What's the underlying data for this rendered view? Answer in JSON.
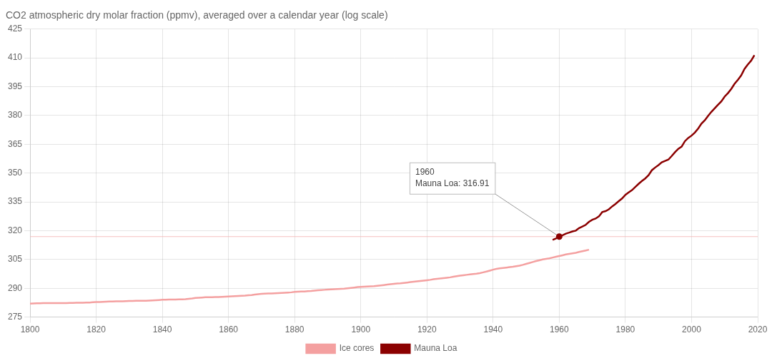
{
  "chart_data": {
    "type": "line",
    "title": "CO2 atmospheric dry molar fraction (ppmv), averaged over a calendar year (log scale)",
    "xlim": [
      1800,
      2020
    ],
    "xticks": [
      1800,
      1820,
      1840,
      1860,
      1880,
      1900,
      1920,
      1940,
      1960,
      1980,
      2000,
      2020
    ],
    "ylim": [
      275,
      425
    ],
    "yticks": [
      275,
      290,
      305,
      320,
      335,
      350,
      365,
      380,
      395,
      410,
      425
    ],
    "grid": true,
    "legend": "bottom",
    "series": [
      {
        "name": "Ice cores",
        "color": "#f4a0a0",
        "x": [
          1800,
          1801,
          1802,
          1803,
          1804,
          1805,
          1806,
          1807,
          1808,
          1809,
          1810,
          1811,
          1812,
          1813,
          1814,
          1815,
          1816,
          1817,
          1818,
          1819,
          1820,
          1821,
          1822,
          1823,
          1824,
          1825,
          1826,
          1827,
          1828,
          1829,
          1830,
          1831,
          1832,
          1833,
          1834,
          1835,
          1836,
          1837,
          1838,
          1839,
          1840,
          1841,
          1842,
          1843,
          1844,
          1845,
          1846,
          1847,
          1848,
          1849,
          1850,
          1851,
          1852,
          1853,
          1854,
          1855,
          1856,
          1857,
          1858,
          1859,
          1860,
          1861,
          1862,
          1863,
          1864,
          1865,
          1866,
          1867,
          1868,
          1869,
          1870,
          1871,
          1872,
          1873,
          1874,
          1875,
          1876,
          1877,
          1878,
          1879,
          1880,
          1881,
          1882,
          1883,
          1884,
          1885,
          1886,
          1887,
          1888,
          1889,
          1890,
          1891,
          1892,
          1893,
          1894,
          1895,
          1896,
          1897,
          1898,
          1899,
          1900,
          1901,
          1902,
          1903,
          1904,
          1905,
          1906,
          1907,
          1908,
          1909,
          1910,
          1911,
          1912,
          1913,
          1914,
          1915,
          1916,
          1917,
          1918,
          1919,
          1920,
          1921,
          1922,
          1923,
          1924,
          1925,
          1926,
          1927,
          1928,
          1929,
          1930,
          1931,
          1932,
          1933,
          1934,
          1935,
          1936,
          1937,
          1938,
          1939,
          1940,
          1941,
          1942,
          1943,
          1944,
          1945,
          1946,
          1947,
          1948,
          1949,
          1950,
          1951,
          1952,
          1953,
          1954,
          1955,
          1956,
          1957,
          1958,
          1959,
          1960,
          1961,
          1962,
          1963,
          1964,
          1965,
          1966,
          1967,
          1968,
          1969
        ],
        "values": [
          282.0,
          282.1,
          282.2,
          282.2,
          282.3,
          282.3,
          282.3,
          282.3,
          282.3,
          282.3,
          282.3,
          282.3,
          282.4,
          282.4,
          282.5,
          282.5,
          282.5,
          282.6,
          282.6,
          282.7,
          282.8,
          282.8,
          282.9,
          283.0,
          283.1,
          283.1,
          283.2,
          283.2,
          283.2,
          283.3,
          283.4,
          283.4,
          283.5,
          283.5,
          283.5,
          283.5,
          283.6,
          283.7,
          283.8,
          283.9,
          284.0,
          284.0,
          284.1,
          284.1,
          284.1,
          284.2,
          284.2,
          284.3,
          284.5,
          284.7,
          285.0,
          285.1,
          285.2,
          285.3,
          285.3,
          285.3,
          285.4,
          285.4,
          285.5,
          285.6,
          285.7,
          285.8,
          285.9,
          286.0,
          286.1,
          286.2,
          286.4,
          286.5,
          286.7,
          286.9,
          287.1,
          287.2,
          287.3,
          287.3,
          287.4,
          287.5,
          287.6,
          287.7,
          287.8,
          287.9,
          288.1,
          288.2,
          288.3,
          288.3,
          288.5,
          288.6,
          288.8,
          289.0,
          289.1,
          289.2,
          289.3,
          289.4,
          289.5,
          289.6,
          289.7,
          289.8,
          290.0,
          290.2,
          290.4,
          290.6,
          290.7,
          290.8,
          290.9,
          291.0,
          291.1,
          291.3,
          291.5,
          291.7,
          291.9,
          292.1,
          292.3,
          292.5,
          292.6,
          292.8,
          293.0,
          293.2,
          293.4,
          293.6,
          293.8,
          294.0,
          294.2,
          294.4,
          294.7,
          294.9,
          295.1,
          295.3,
          295.5,
          295.7,
          296.0,
          296.3,
          296.6,
          296.8,
          297.0,
          297.2,
          297.4,
          297.6,
          297.9,
          298.3,
          298.7,
          299.2,
          299.7,
          300.1,
          300.4,
          300.6,
          300.8,
          301.0,
          301.2,
          301.5,
          301.8,
          302.2,
          302.7,
          303.2,
          303.7,
          304.2,
          304.6,
          305.0,
          305.3,
          305.6,
          306.0,
          306.4,
          306.8,
          307.2,
          307.6,
          307.9,
          308.2,
          308.5,
          308.9,
          309.3,
          309.7,
          310.1
        ]
      },
      {
        "name": "Mauna Loa",
        "color": "#8b0000",
        "x": [
          1958,
          1959,
          1960,
          1961,
          1962,
          1963,
          1964,
          1965,
          1966,
          1967,
          1968,
          1969,
          1970,
          1971,
          1972,
          1973,
          1974,
          1975,
          1976,
          1977,
          1978,
          1979,
          1980,
          1981,
          1982,
          1983,
          1984,
          1985,
          1986,
          1987,
          1988,
          1989,
          1990,
          1991,
          1992,
          1993,
          1994,
          1995,
          1996,
          1997,
          1998,
          1999,
          2000,
          2001,
          2002,
          2003,
          2004,
          2005,
          2006,
          2007,
          2008,
          2009,
          2010,
          2011,
          2012,
          2013,
          2014,
          2015,
          2016,
          2017,
          2018,
          2019
        ],
        "values": [
          315.24,
          315.98,
          316.91,
          317.64,
          318.45,
          318.99,
          319.62,
          320.04,
          321.37,
          322.18,
          323.05,
          324.62,
          325.68,
          326.32,
          327.45,
          329.68,
          330.18,
          331.11,
          332.65,
          333.9,
          335.4,
          336.78,
          338.68,
          339.93,
          341.13,
          342.78,
          344.42,
          345.9,
          347.21,
          348.93,
          351.48,
          352.91,
          354.19,
          355.59,
          356.37,
          357.04,
          358.89,
          360.9,
          362.64,
          363.76,
          366.63,
          368.31,
          369.52,
          371.13,
          373.22,
          375.77,
          377.49,
          379.8,
          381.9,
          383.76,
          385.59,
          387.37,
          389.85,
          391.63,
          393.82,
          396.48,
          398.55,
          400.83,
          404.21,
          406.53,
          408.52,
          411.43
        ]
      }
    ],
    "annotations": [
      {
        "text": "1960\nMauna Loa: 316.91",
        "x": 1960,
        "y": 316.91
      }
    ]
  }
}
